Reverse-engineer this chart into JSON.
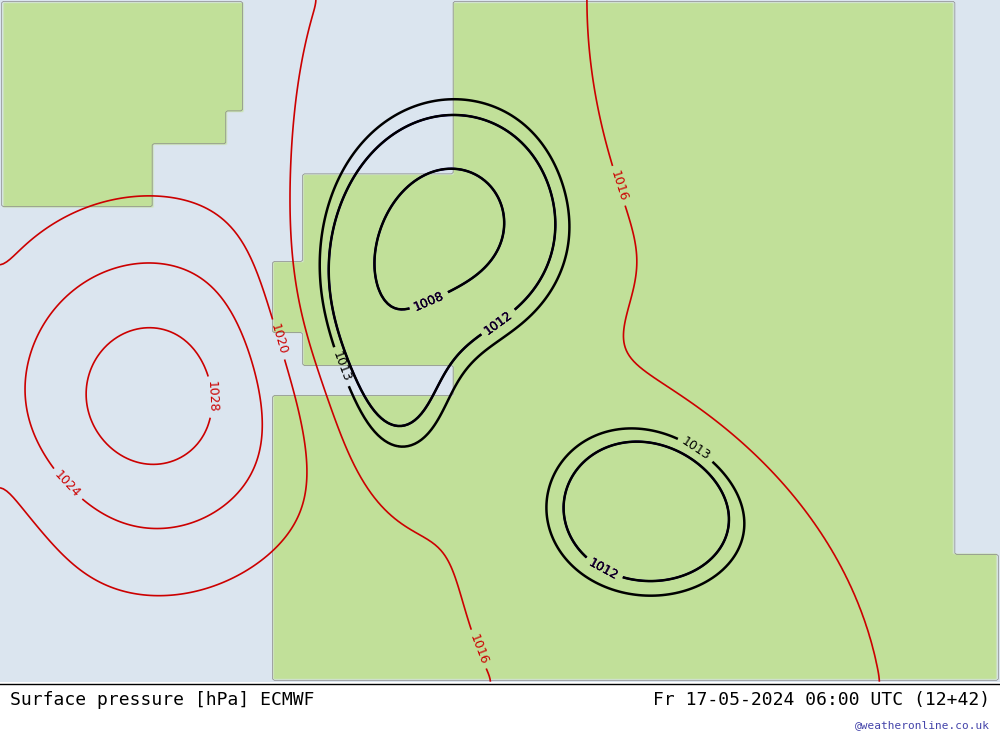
{
  "title_left": "Surface pressure [hPa] ECMWF",
  "title_right": "Fr 17-05-2024 06:00 UTC (12+42)",
  "watermark": "@weatheronline.co.uk",
  "bg_ocean": "#d8e8f0",
  "bg_land_green": "#c8e6a0",
  "bg_land_gray": "#d0d0d0",
  "contour_red": "#cc0000",
  "contour_blue": "#0000cc",
  "contour_black": "#000000",
  "label_fontsize": 9,
  "title_fontsize": 13,
  "watermark_fontsize": 8,
  "watermark_color": "#4444aa"
}
